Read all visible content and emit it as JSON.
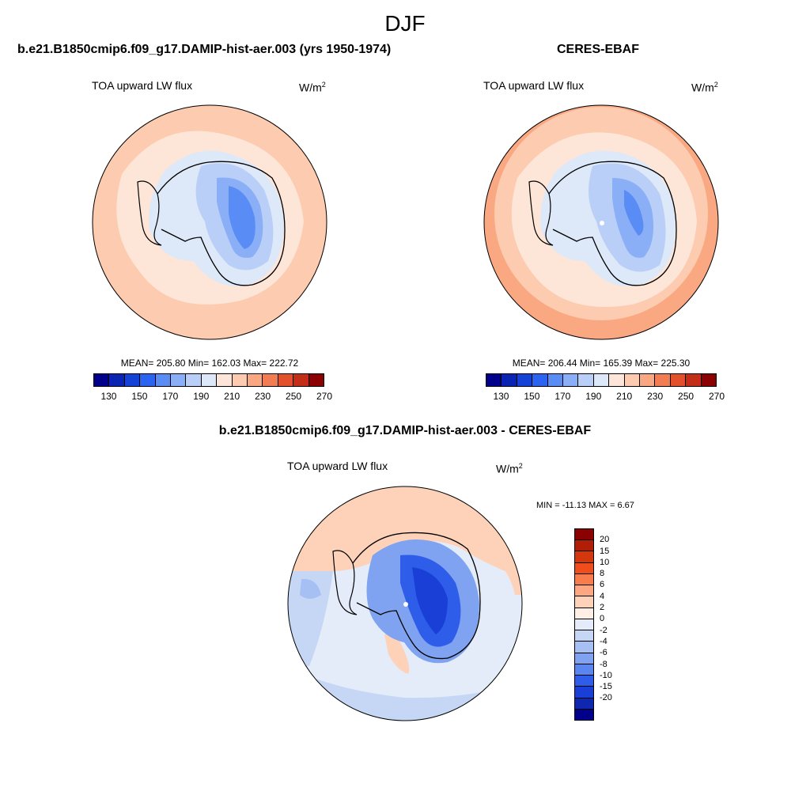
{
  "season": "DJF",
  "panels": {
    "model": {
      "title": "b.e21.B1850cmip6.f09_g17.DAMIP-hist-aer.003 (yrs 1950-1974)",
      "variable": "TOA upward LW flux",
      "unit_base": "W/m",
      "unit_exp": "2",
      "stats": "MEAN= 205.80  Min= 162.03  Max= 222.72"
    },
    "obs": {
      "title": "CERES-EBAF",
      "variable": "TOA upward LW flux",
      "unit_base": "W/m",
      "unit_exp": "2",
      "stats": "MEAN= 206.44  Min= 165.39  Max= 225.30"
    },
    "diff": {
      "title": "b.e21.B1850cmip6.f09_g17.DAMIP-hist-aer.003 - CERES-EBAF",
      "variable": "TOA upward LW flux",
      "unit_base": "W/m",
      "unit_exp": "2",
      "stats": "MIN = -11.13 MAX =   6.67"
    }
  },
  "colorbar_abs": {
    "colors": [
      "#00008b",
      "#0a25b4",
      "#1543d6",
      "#2a64f0",
      "#5a8cf5",
      "#8aaff6",
      "#b9cff7",
      "#dde8f8",
      "#fde6d7",
      "#fccbb0",
      "#f9a882",
      "#f37d52",
      "#e3512c",
      "#c42e18",
      "#8b0000"
    ],
    "tick_labels": [
      "130",
      "150",
      "170",
      "190",
      "210",
      "230",
      "250",
      "270"
    ]
  },
  "colorbar_diff": {
    "colors": [
      "#8b0000",
      "#b11e08",
      "#d5370d",
      "#ef4d1b",
      "#f97c4d",
      "#fba882",
      "#fdd2b9",
      "#ffeee3",
      "#e3ecf8",
      "#c6d7f6",
      "#a6c0f4",
      "#7fa3f1",
      "#5a86ef",
      "#2e5ee9",
      "#1a3fd6",
      "#0f26b0",
      "#00008b"
    ],
    "tick_labels": [
      "20",
      "15",
      "10",
      "8",
      "6",
      "4",
      "2",
      "0",
      "-2",
      "-4",
      "-6",
      "-8",
      "-10",
      "-15",
      "-20"
    ]
  },
  "chart_data": [
    {
      "type": "heatmap",
      "title": "b.e21.B1850cmip6.f09_g17.DAMIP-hist-aer.003 (yrs 1950-1974)",
      "projection": "south polar stereographic",
      "variable": "TOA upward LW flux",
      "units": "W/m2",
      "mean": 205.8,
      "min": 162.03,
      "max": 222.72,
      "contour_levels": [
        130,
        140,
        150,
        160,
        170,
        180,
        190,
        200,
        210,
        220,
        230,
        240,
        250,
        260,
        270
      ]
    },
    {
      "type": "heatmap",
      "title": "CERES-EBAF",
      "projection": "south polar stereographic",
      "variable": "TOA upward LW flux",
      "units": "W/m2",
      "mean": 206.44,
      "min": 165.39,
      "max": 225.3,
      "contour_levels": [
        130,
        140,
        150,
        160,
        170,
        180,
        190,
        200,
        210,
        220,
        230,
        240,
        250,
        260,
        270
      ]
    },
    {
      "type": "heatmap",
      "title": "b.e21.B1850cmip6.f09_g17.DAMIP-hist-aer.003 - CERES-EBAF",
      "projection": "south polar stereographic",
      "variable": "TOA upward LW flux",
      "units": "W/m2",
      "min": -11.13,
      "max": 6.67,
      "contour_levels": [
        -20,
        -15,
        -10,
        -8,
        -6,
        -4,
        -2,
        0,
        2,
        4,
        6,
        8,
        10,
        15,
        20
      ]
    }
  ]
}
